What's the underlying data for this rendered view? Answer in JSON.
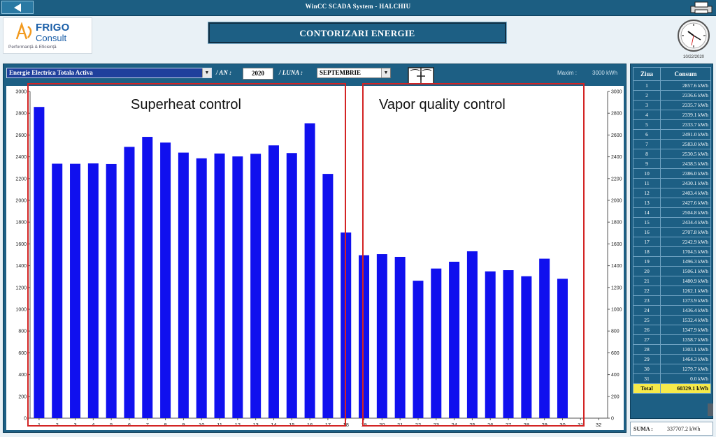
{
  "topbar": {
    "title": "WinCC SCADA System  -  HALCHIU"
  },
  "logo": {
    "line1": "FRIGO",
    "line2": "Consult",
    "tagline": "Performanță & Eficiență"
  },
  "header": {
    "page_title": "CONTORIZARI ENERGIE"
  },
  "clock": {
    "date": "10/22/2020"
  },
  "controls": {
    "series": "Energie Electrica Totala Activa",
    "year_label": "/ AN :",
    "year": "2020",
    "month_label": "/ LUNA :",
    "month": "SEPTEMBRIE",
    "max_label": "Maxim :",
    "max_value": "3000 kWh"
  },
  "annotations": [
    {
      "label": "Superheat control"
    },
    {
      "label": "Vapor quality control"
    }
  ],
  "chart_data": {
    "type": "bar",
    "categories": [
      "1",
      "2",
      "3",
      "4",
      "5",
      "6",
      "7",
      "8",
      "9",
      "10",
      "11",
      "12",
      "13",
      "14",
      "15",
      "16",
      "17",
      "18",
      "19",
      "20",
      "21",
      "22",
      "23",
      "24",
      "25",
      "26",
      "27",
      "28",
      "29",
      "30",
      "31",
      "32"
    ],
    "values": [
      2857.6,
      2336.6,
      2335.7,
      2339.1,
      2333.7,
      2491.0,
      2583.0,
      2530.5,
      2438.5,
      2386.0,
      2430.1,
      2403.4,
      2427.6,
      2504.8,
      2434.4,
      2707.8,
      2242.9,
      1704.5,
      1496.3,
      1506.1,
      1480.9,
      1262.1,
      1373.9,
      1436.4,
      1532.4,
      1347.9,
      1358.7,
      1303.1,
      1464.3,
      1279.7,
      0.0,
      0.0
    ],
    "ylim": [
      0,
      3000
    ],
    "yticks": [
      0,
      200,
      400,
      600,
      800,
      1000,
      1200,
      1400,
      1600,
      1800,
      2000,
      2200,
      2400,
      2600,
      2800,
      3000
    ],
    "grid": false,
    "bar_color": "#1010ee"
  },
  "table": {
    "headers": [
      "Ziua",
      "Consum"
    ],
    "rows": [
      {
        "day": "1",
        "value": "2857.6 kWh"
      },
      {
        "day": "2",
        "value": "2336.6 kWh"
      },
      {
        "day": "3",
        "value": "2335.7 kWh"
      },
      {
        "day": "4",
        "value": "2339.1 kWh"
      },
      {
        "day": "5",
        "value": "2333.7 kWh"
      },
      {
        "day": "6",
        "value": "2491.0 kWh"
      },
      {
        "day": "7",
        "value": "2583.0 kWh"
      },
      {
        "day": "8",
        "value": "2530.5 kWh"
      },
      {
        "day": "9",
        "value": "2438.5 kWh"
      },
      {
        "day": "10",
        "value": "2386.0 kWh"
      },
      {
        "day": "11",
        "value": "2430.1 kWh"
      },
      {
        "day": "12",
        "value": "2403.4 kWh"
      },
      {
        "day": "13",
        "value": "2427.6 kWh"
      },
      {
        "day": "14",
        "value": "2504.8 kWh"
      },
      {
        "day": "15",
        "value": "2434.4 kWh"
      },
      {
        "day": "16",
        "value": "2707.8 kWh"
      },
      {
        "day": "17",
        "value": "2242.9 kWh"
      },
      {
        "day": "18",
        "value": "1704.5 kWh"
      },
      {
        "day": "19",
        "value": "1496.3 kWh"
      },
      {
        "day": "20",
        "value": "1506.1 kWh"
      },
      {
        "day": "21",
        "value": "1480.9 kWh"
      },
      {
        "day": "22",
        "value": "1262.1 kWh"
      },
      {
        "day": "23",
        "value": "1373.9 kWh"
      },
      {
        "day": "24",
        "value": "1436.4 kWh"
      },
      {
        "day": "25",
        "value": "1532.4 kWh"
      },
      {
        "day": "26",
        "value": "1347.9 kWh"
      },
      {
        "day": "27",
        "value": "1358.7 kWh"
      },
      {
        "day": "28",
        "value": "1303.1 kWh"
      },
      {
        "day": "29",
        "value": "1464.3 kWh"
      },
      {
        "day": "30",
        "value": "1279.7 kWh"
      },
      {
        "day": "31",
        "value": "0.0 kWh"
      }
    ],
    "total_label": "Total",
    "total_value": "60329.1 kWh"
  },
  "suma": {
    "label": "SUMA :",
    "value": "337707.2 kWh"
  },
  "colors": {
    "panel": "#1d5f84",
    "topbar": "#1c5e82",
    "bars": "#1010ee",
    "annotation": "#d32424",
    "total_row": "#f6ea4a"
  }
}
